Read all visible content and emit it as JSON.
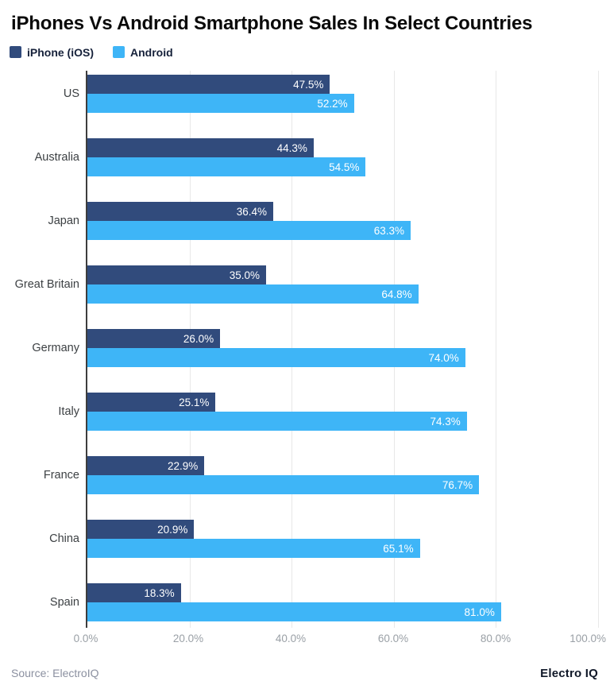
{
  "chart_data": {
    "type": "bar",
    "orientation": "horizontal",
    "title": "iPhones Vs Android Smartphone Sales In Select Countries",
    "categories": [
      "US",
      "Australia",
      "Japan",
      "Great Britain",
      "Germany",
      "Italy",
      "France",
      "China",
      "Spain"
    ],
    "series": [
      {
        "name": "iPhone (iOS)",
        "color": "#314b7c",
        "values": [
          47.5,
          44.3,
          36.4,
          35.0,
          26.0,
          25.1,
          22.9,
          20.9,
          18.3
        ]
      },
      {
        "name": "Android",
        "color": "#3eb5f7",
        "values": [
          52.2,
          54.5,
          63.3,
          64.8,
          74.0,
          74.3,
          76.7,
          65.1,
          81.0
        ]
      }
    ],
    "xlim": [
      0,
      100
    ],
    "x_ticks": [
      "0.0%",
      "20.0%",
      "40.0%",
      "60.0%",
      "80.0%",
      "100.0%"
    ],
    "grid": true,
    "legend_position": "top-left",
    "value_label_format": "percent-one-decimal"
  },
  "footer": {
    "source": "Source: ElectroIQ",
    "brand": "Electro IQ"
  }
}
